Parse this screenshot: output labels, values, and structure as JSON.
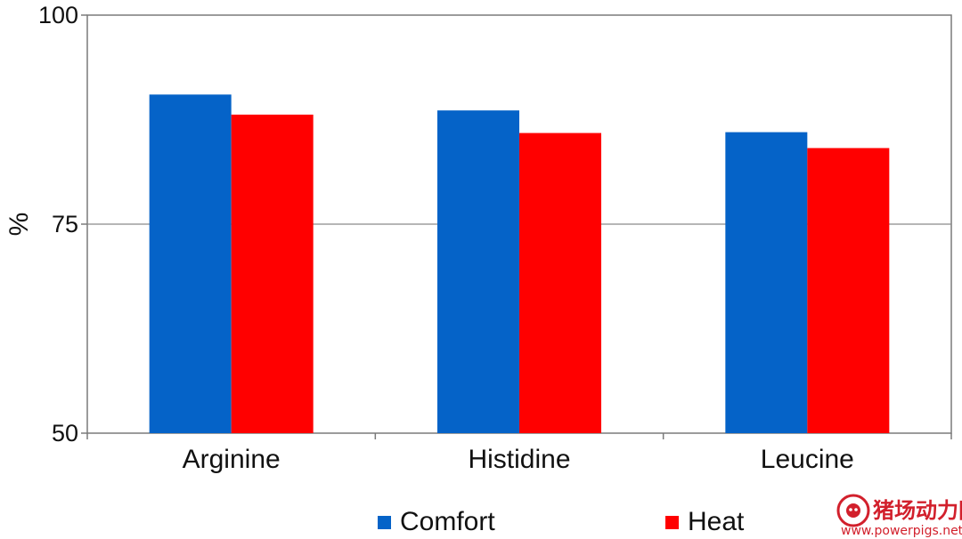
{
  "chart_data": {
    "type": "bar",
    "categories": [
      "Arginine",
      "Histidine",
      "Leucine"
    ],
    "series": [
      {
        "name": "Comfort",
        "values": [
          90.5,
          88.6,
          86.0
        ],
        "color": "#0563c8"
      },
      {
        "name": "Heat",
        "values": [
          88.1,
          85.9,
          84.1
        ],
        "color": "#ff0000"
      }
    ],
    "ylabel": "%",
    "xlabel": "",
    "title": "",
    "ylim": [
      50,
      100
    ],
    "yticks": [
      "50",
      "75",
      "100"
    ],
    "grid": "horizontal at 75",
    "legend": "bottom"
  },
  "watermark": {
    "text": "猪场动力网",
    "url": "www.powerpigs.net",
    "icon": "pig-logo-icon"
  }
}
